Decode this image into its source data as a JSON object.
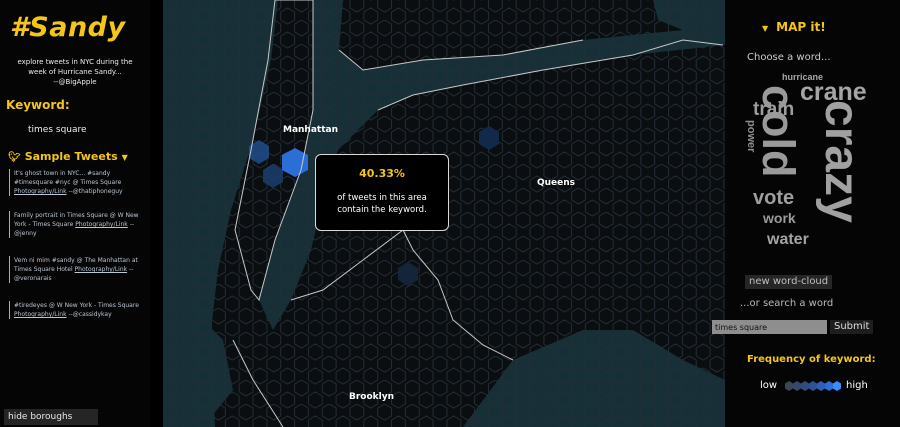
{
  "app": {
    "title": "#Sandy",
    "subtitle_lines": [
      "explore tweets in NYC during the",
      "week of Hurricane Sandy...",
      "--@BigApple"
    ]
  },
  "keyword": {
    "heading": "Keyword:",
    "value": "times square"
  },
  "sample_tweets": {
    "heading": "Sample Tweets",
    "items": [
      {
        "lines": [
          "It's ghost town in NYC... #sandy",
          "#timesquare #nyc @ Times Square"
        ],
        "link_text": "Photography/Link",
        "tail": "--@thatiphoneguy"
      },
      {
        "lines": [
          "Family portrait in Times Square @ W New",
          "York - Times Square"
        ],
        "link_text": "Photography/Link",
        "tail": "--@jenny"
      },
      {
        "lines": [
          "Vem ni mim #sandy @ The Manhattan at",
          "Times Square Hotel"
        ],
        "link_text": "Photography/Link",
        "tail": "--@veronarais"
      },
      {
        "lines": [
          "#tiredeyes @ W New York - Times Square"
        ],
        "link_text": "Photography/Link",
        "tail": "--@cassidykay"
      }
    ]
  },
  "hide_boroughs_label": "hide boroughs",
  "map": {
    "boroughs": [
      "Manhattan",
      "Queens",
      "Brooklyn"
    ],
    "tooltip": {
      "percent": "40.33%",
      "text_lines": [
        "of tweets in this area",
        "contain the keyword."
      ]
    },
    "colors": {
      "water": "#173038",
      "land": "#0b0e11",
      "hex_stroke": "#232d35",
      "boundary": "#c8c8c8",
      "highlight": "#3b8cff"
    }
  },
  "map_it": {
    "heading": "MAP it!",
    "choose_label": "Choose a word...",
    "word_cloud": [
      "hurricane",
      "crane",
      "train",
      "cold",
      "crazy",
      "power",
      "vote",
      "work",
      "water"
    ],
    "new_cloud_label": "new word-cloud",
    "search_label": "...or search a word",
    "search_value": "times square",
    "submit_label": "Submit",
    "frequency_heading": "Frequency of keyword:",
    "legend_low": "low",
    "legend_high": "high"
  },
  "accent_color": "#f5c518"
}
